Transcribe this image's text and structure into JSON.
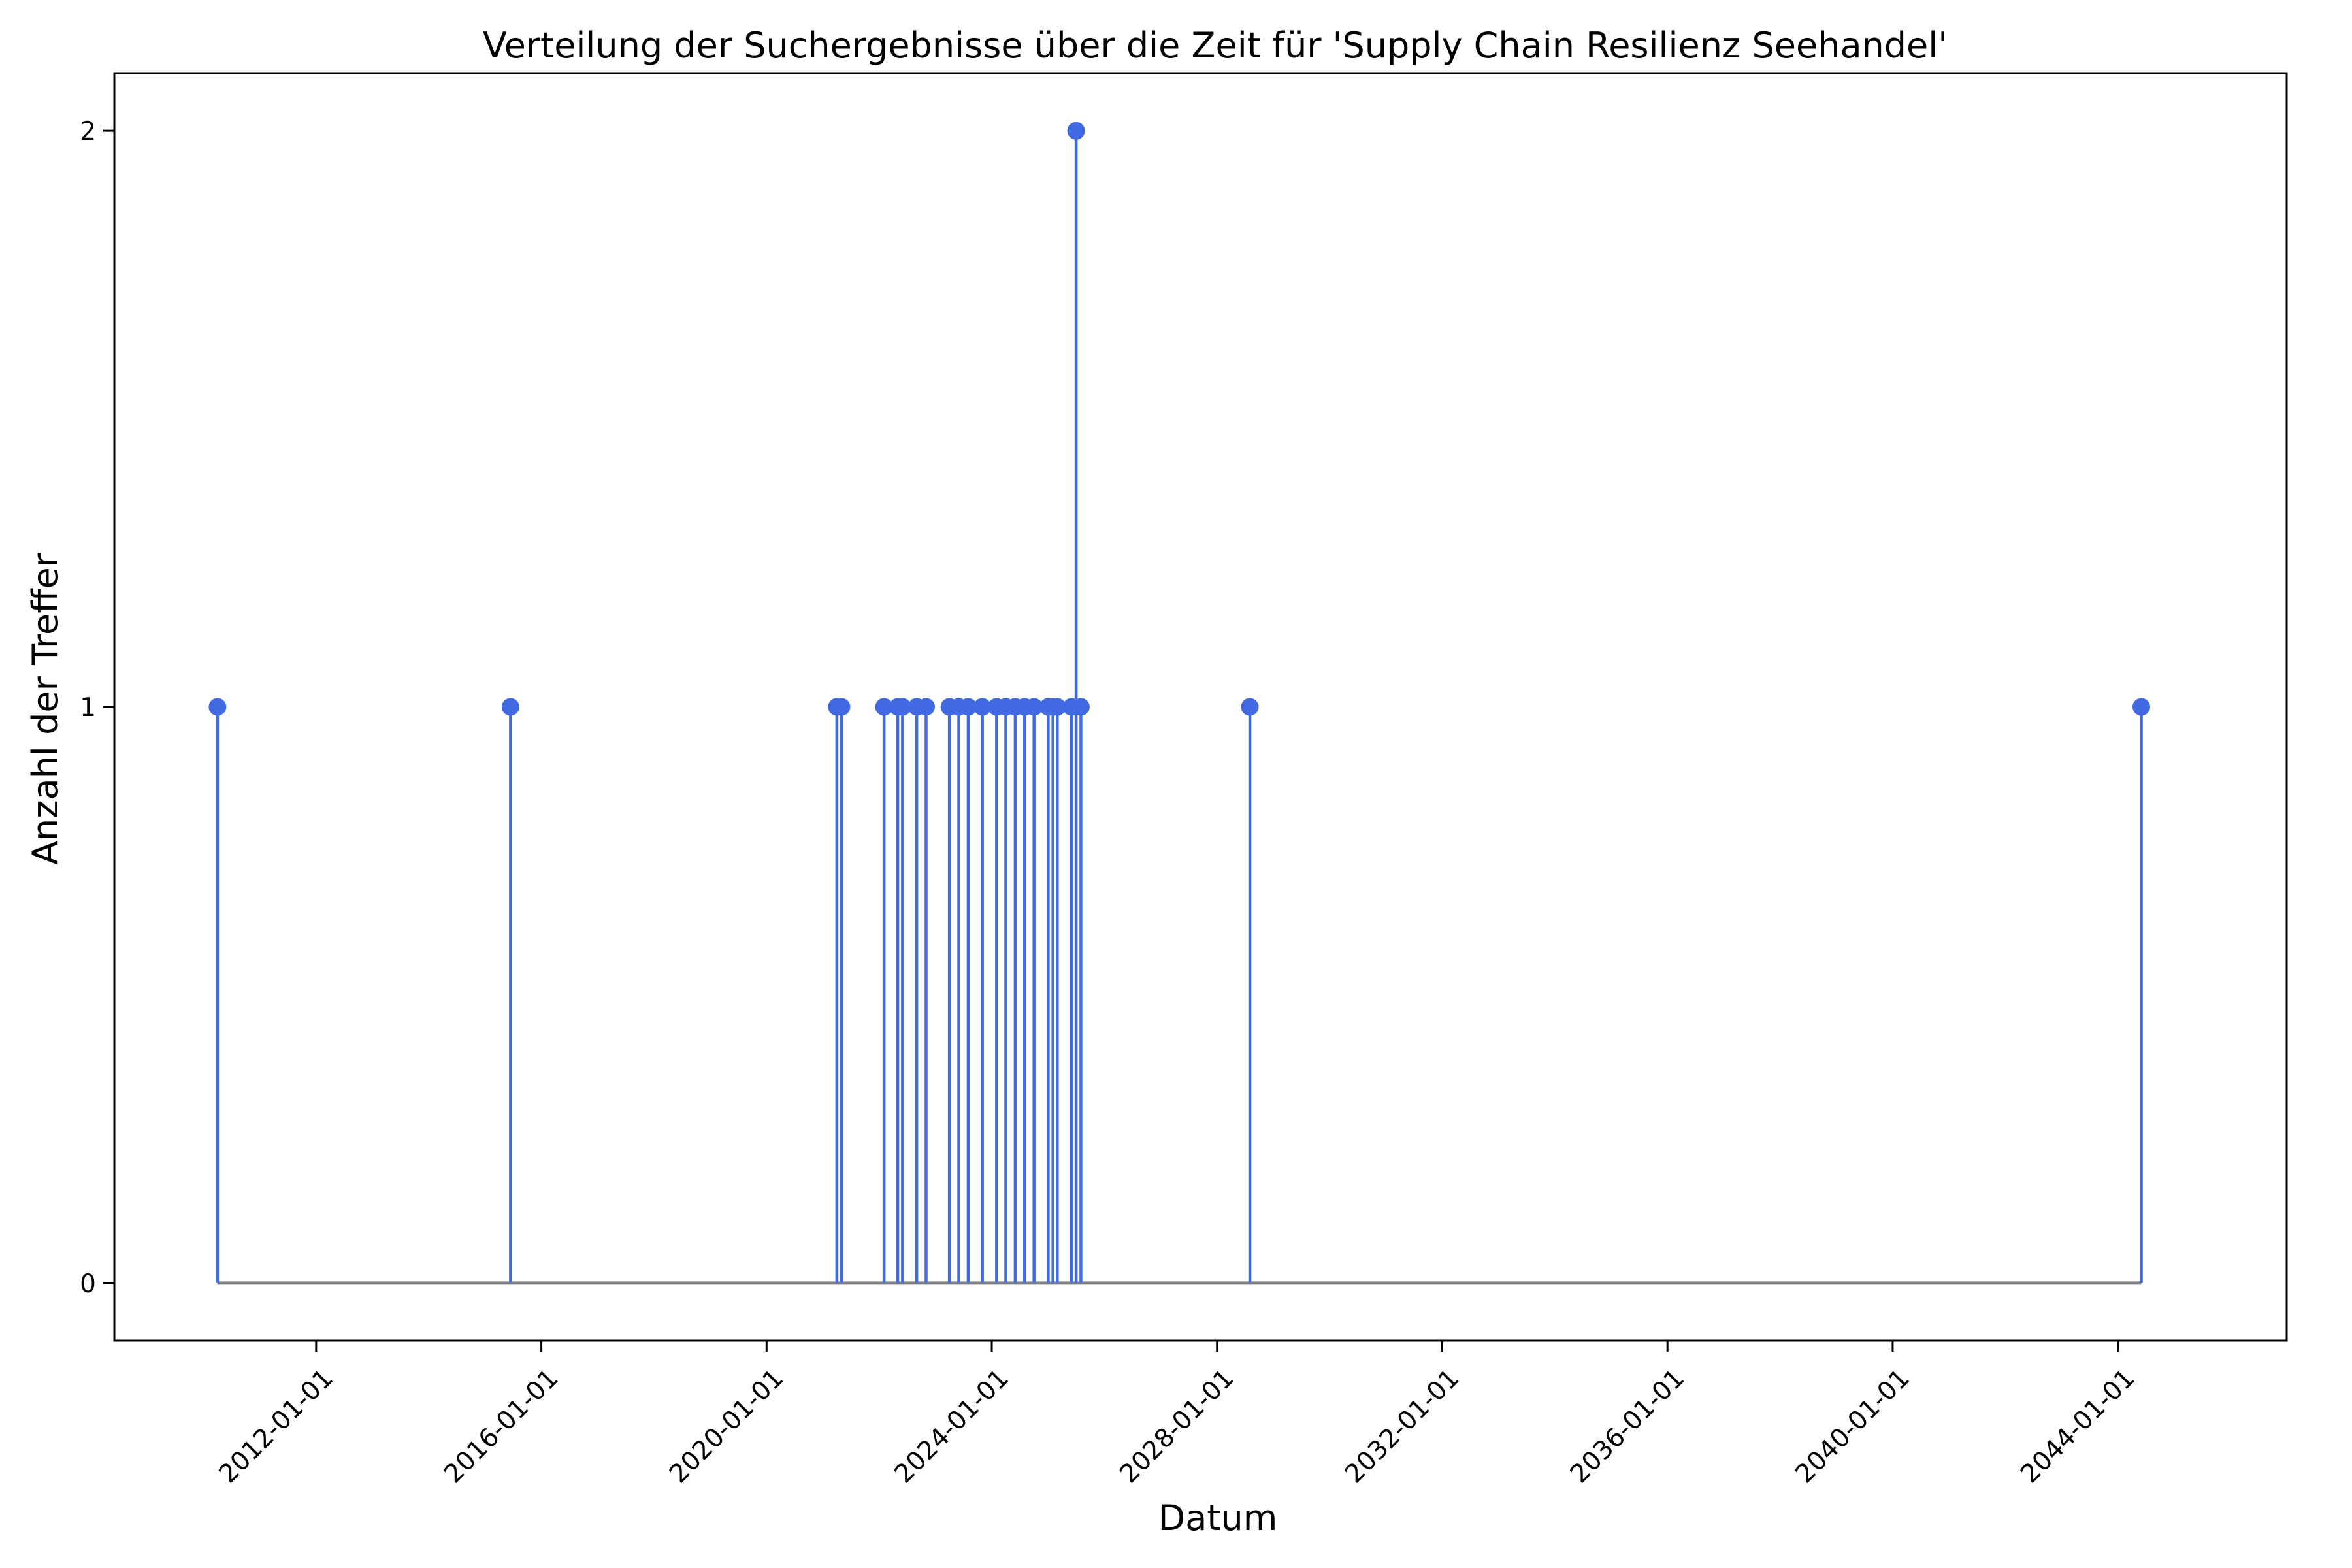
{
  "chart_data": {
    "type": "stem",
    "title": "Verteilung der Suchergebnisse über die Zeit für 'Supply Chain Resilienz Seehandel'",
    "xlabel": "Datum",
    "ylabel": "Anzahl der Treffer",
    "xlim": [
      "2008-06-01",
      "2046-12-31"
    ],
    "ylim": [
      -0.1,
      2.1
    ],
    "x_ticks": [
      "2012-01-01",
      "2016-01-01",
      "2020-01-01",
      "2024-01-01",
      "2028-01-01",
      "2032-01-01",
      "2036-01-01",
      "2040-01-01",
      "2044-01-01"
    ],
    "y_ticks": [
      0,
      1,
      2
    ],
    "grid": false,
    "colors": {
      "stem": "#4169e1",
      "baseline": "#808080"
    },
    "series": [
      {
        "x": [
          "2010-04-01",
          "2015-06-15",
          "2021-04-01",
          "2021-05-01",
          "2022-02-01",
          "2022-05-01",
          "2022-06-01",
          "2022-09-01",
          "2022-11-01",
          "2023-04-01",
          "2023-06-01",
          "2023-08-01",
          "2023-11-01",
          "2024-02-01",
          "2024-04-01",
          "2024-06-01",
          "2024-08-01",
          "2024-10-01",
          "2025-01-01",
          "2025-02-01",
          "2025-03-01",
          "2025-06-01",
          "2025-07-01",
          "2025-08-01",
          "2028-08-01",
          "2044-06-01"
        ],
        "values": [
          1,
          1,
          1,
          1,
          1,
          1,
          1,
          1,
          1,
          1,
          1,
          1,
          1,
          1,
          1,
          1,
          1,
          1,
          1,
          1,
          1,
          1,
          2,
          1,
          1,
          1
        ]
      }
    ]
  }
}
